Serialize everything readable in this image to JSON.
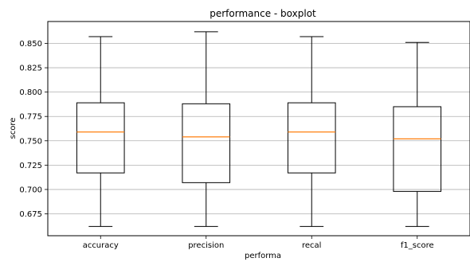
{
  "chart_data": {
    "type": "boxplot",
    "title": "performance - boxplot",
    "xlabel": "performa",
    "ylabel": "score",
    "ylim": [
      0.6525,
      0.8725
    ],
    "yticks": [
      0.675,
      0.7,
      0.725,
      0.75,
      0.775,
      0.8,
      0.825,
      0.85
    ],
    "ytick_labels": [
      "0.675",
      "0.700",
      "0.725",
      "0.750",
      "0.775",
      "0.800",
      "0.825",
      "0.850"
    ],
    "grid": "y",
    "categories": [
      "accuracy",
      "precision",
      "recal",
      "f1_score"
    ],
    "boxes": [
      {
        "whisker_low": 0.662,
        "q1": 0.717,
        "median": 0.759,
        "q3": 0.789,
        "whisker_high": 0.857
      },
      {
        "whisker_low": 0.662,
        "q1": 0.707,
        "median": 0.754,
        "q3": 0.788,
        "whisker_high": 0.862
      },
      {
        "whisker_low": 0.662,
        "q1": 0.717,
        "median": 0.759,
        "q3": 0.789,
        "whisker_high": 0.857
      },
      {
        "whisker_low": 0.662,
        "q1": 0.698,
        "median": 0.752,
        "q3": 0.785,
        "whisker_high": 0.851
      }
    ],
    "colors": {
      "box": "#000000",
      "median": "#ff7f0e",
      "grid": "#b0b0b0"
    }
  }
}
